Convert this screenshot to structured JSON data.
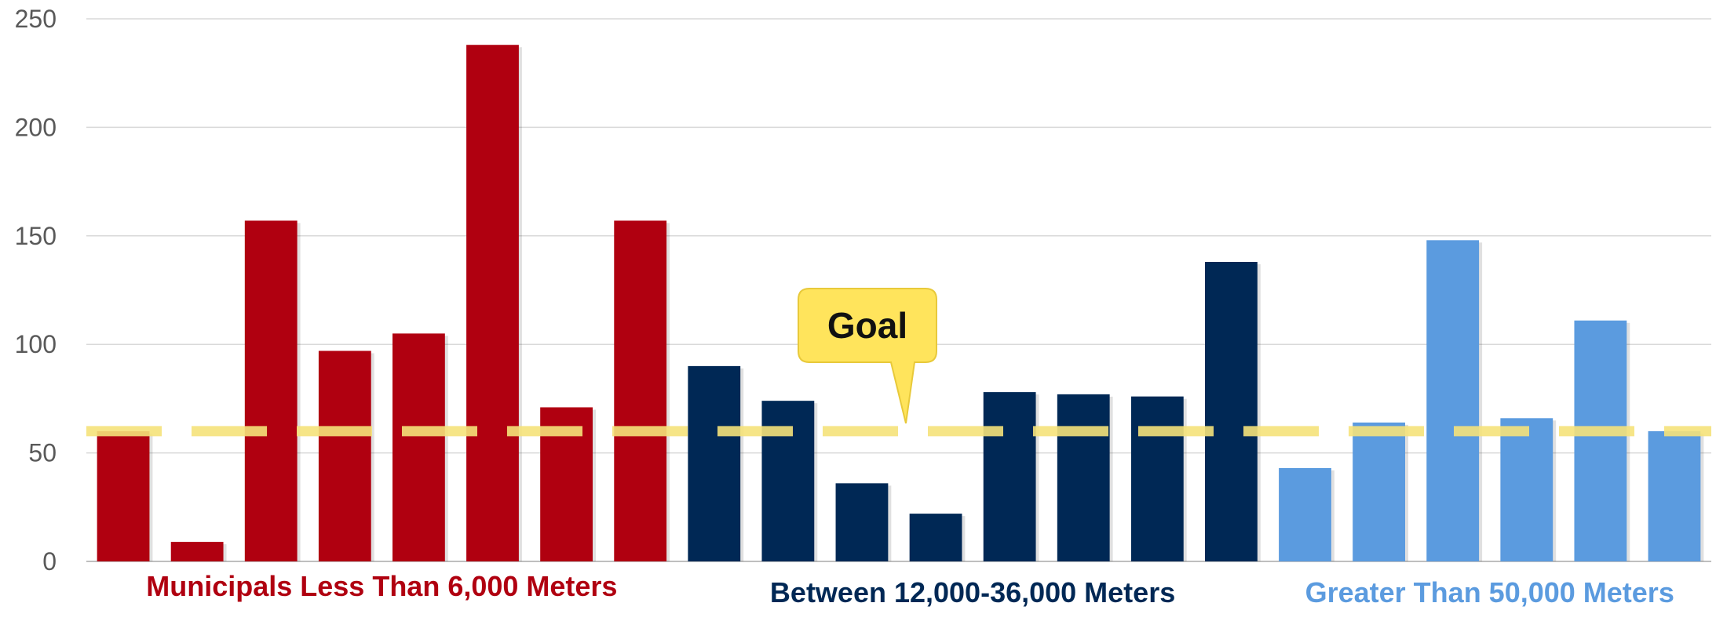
{
  "chart_data": {
    "type": "bar",
    "title": "",
    "xlabel": "",
    "ylabel": "",
    "ylim": [
      0,
      250
    ],
    "yticks": [
      0,
      50,
      100,
      150,
      200,
      250
    ],
    "grid": true,
    "legend": "none",
    "goal": {
      "value": 60,
      "label": "Goal",
      "line_color": "#f5e27a",
      "callout_color": "#ffe45c"
    },
    "groups": [
      {
        "name": "Municipals Less Than 6,000 Meters",
        "color": "#b00010",
        "values": [
          60,
          9,
          157,
          97,
          105,
          238,
          71,
          157
        ]
      },
      {
        "name": "Between 12,000-36,000 Meters",
        "color": "#002855",
        "values": [
          90,
          74,
          36,
          22,
          78,
          77,
          76,
          138
        ]
      },
      {
        "name": "Greater Than 50,000 Meters",
        "color": "#5b9bdf",
        "values": [
          43,
          64,
          148,
          66,
          111,
          60
        ]
      }
    ]
  }
}
